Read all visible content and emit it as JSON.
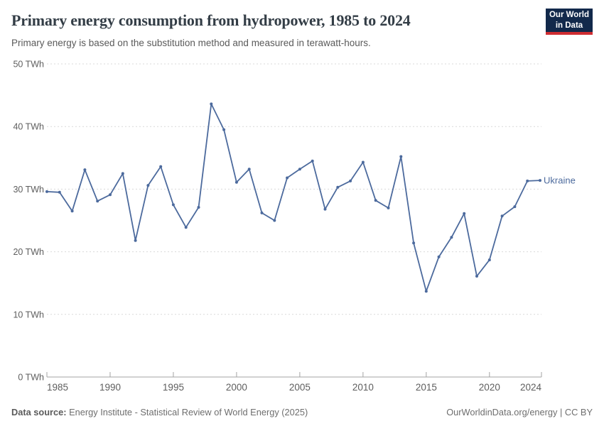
{
  "header": {
    "title": "Primary energy consumption from hydropower, 1985 to 2024",
    "subtitle": "Primary energy is based on the substitution method and measured in terawatt-hours."
  },
  "logo": {
    "line1": "Our World",
    "line2": "in Data"
  },
  "chart_data": {
    "type": "line",
    "title": "Primary energy consumption from hydropower, 1985 to 2024",
    "xlabel": "",
    "ylabel": "TWh",
    "ylim": [
      0,
      50
    ],
    "yticks": [
      0,
      10,
      20,
      30,
      40,
      50
    ],
    "ytick_suffix": " TWh",
    "xticks": [
      1985,
      1990,
      1995,
      2000,
      2005,
      2010,
      2015,
      2020,
      2024
    ],
    "grid": "horizontal-dashed",
    "legend_position": "end-of-line",
    "series": [
      {
        "name": "Ukraine",
        "color": "#4c6a9d",
        "x": [
          1985,
          1986,
          1987,
          1988,
          1989,
          1990,
          1991,
          1992,
          1993,
          1994,
          1995,
          1996,
          1997,
          1998,
          1999,
          2000,
          2001,
          2002,
          2003,
          2004,
          2005,
          2006,
          2007,
          2008,
          2009,
          2010,
          2011,
          2012,
          2013,
          2014,
          2015,
          2016,
          2017,
          2018,
          2019,
          2020,
          2021,
          2022,
          2023,
          2024
        ],
        "values": [
          29.6,
          29.5,
          26.5,
          33.1,
          28.1,
          29.1,
          32.5,
          21.8,
          30.6,
          33.6,
          27.5,
          23.9,
          27.1,
          43.6,
          39.5,
          31.1,
          33.2,
          26.2,
          25.0,
          31.8,
          33.2,
          34.5,
          26.8,
          30.3,
          31.3,
          34.3,
          28.2,
          27.0,
          35.2,
          21.4,
          13.7,
          19.2,
          22.3,
          26.1,
          16.1,
          18.7,
          25.7,
          27.2,
          31.3,
          31.4
        ]
      }
    ]
  },
  "footer": {
    "source_label": "Data source:",
    "source_text": "Energy Institute - Statistical Review of World Energy (2025)",
    "credit": "OurWorldinData.org/energy | CC BY"
  },
  "colors": {
    "line": "#4c6a9d",
    "series_label": "#4c6a9d",
    "logo_bg": "#12294b",
    "logo_accent": "#cf2d32",
    "grid": "#d9d9d9",
    "axis": "#a3a3a3",
    "tick_text": "#5e5e5e",
    "title_text": "#333d46",
    "subtitle_text": "#5a5a5a",
    "footer_text": "#6e6e6e"
  }
}
